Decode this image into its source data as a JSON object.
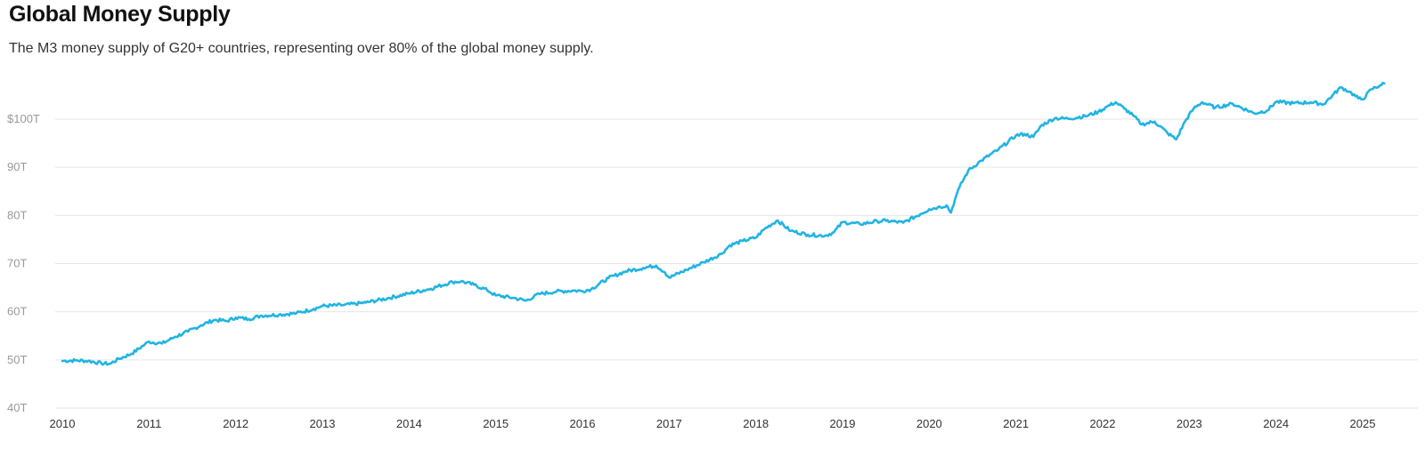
{
  "header": {
    "title": "Global Money Supply",
    "subtitle": "The M3 money supply of G20+ countries, representing over 80% of the global money supply."
  },
  "chart_data": {
    "type": "line",
    "title": "Global Money Supply",
    "subtitle": "The M3 money supply of G20+ countries, representing over 80% of the global money supply.",
    "xlabel": "",
    "ylabel": "",
    "xlim": [
      2010,
      2025.3
    ],
    "ylim": [
      40,
      110
    ],
    "y_ticks": [
      {
        "value": 40,
        "label": "40T"
      },
      {
        "value": 50,
        "label": "50T"
      },
      {
        "value": 60,
        "label": "60T"
      },
      {
        "value": 70,
        "label": "70T"
      },
      {
        "value": 80,
        "label": "80T"
      },
      {
        "value": 90,
        "label": "90T"
      },
      {
        "value": 100,
        "label": "$100T"
      }
    ],
    "x_ticks": [
      {
        "value": 2010,
        "label": "2010"
      },
      {
        "value": 2011,
        "label": "2011"
      },
      {
        "value": 2012,
        "label": "2012"
      },
      {
        "value": 2013,
        "label": "2013"
      },
      {
        "value": 2014,
        "label": "2014"
      },
      {
        "value": 2015,
        "label": "2015"
      },
      {
        "value": 2016,
        "label": "2016"
      },
      {
        "value": 2017,
        "label": "2017"
      },
      {
        "value": 2018,
        "label": "2018"
      },
      {
        "value": 2019,
        "label": "2019"
      },
      {
        "value": 2020,
        "label": "2020"
      },
      {
        "value": 2021,
        "label": "2021"
      },
      {
        "value": 2022,
        "label": "2022"
      },
      {
        "value": 2023,
        "label": "2023"
      },
      {
        "value": 2024,
        "label": "2024"
      },
      {
        "value": 2025,
        "label": "2025"
      }
    ],
    "grid": true,
    "color": "#21b4e2",
    "series": [
      {
        "x": [
          2010.0,
          2010.15,
          2010.3,
          2010.45,
          2010.55,
          2010.65,
          2010.8,
          2010.95,
          2011.0,
          2011.15,
          2011.3,
          2011.45,
          2011.6,
          2011.75,
          2011.9,
          2012.0,
          2012.15,
          2012.3,
          2012.5,
          2012.7,
          2012.9,
          2013.0,
          2013.25,
          2013.5,
          2013.75,
          2014.0,
          2014.25,
          2014.5,
          2014.6,
          2014.75,
          2014.9,
          2015.0,
          2015.2,
          2015.35,
          2015.5,
          2015.7,
          2015.9,
          2016.0,
          2016.1,
          2016.3,
          2016.5,
          2016.7,
          2016.85,
          2016.95,
          2017.0,
          2017.2,
          2017.4,
          2017.6,
          2017.7,
          2017.85,
          2018.0,
          2018.1,
          2018.25,
          2018.4,
          2018.6,
          2018.8,
          2018.9,
          2019.0,
          2019.2,
          2019.4,
          2019.5,
          2019.7,
          2019.9,
          2020.0,
          2020.1,
          2020.2,
          2020.25,
          2020.3,
          2020.35,
          2020.45,
          2020.6,
          2020.8,
          2021.0,
          2021.1,
          2021.2,
          2021.3,
          2021.45,
          2021.6,
          2021.8,
          2021.95,
          2022.05,
          2022.15,
          2022.25,
          2022.35,
          2022.45,
          2022.6,
          2022.75,
          2022.85,
          2022.95,
          2023.05,
          2023.15,
          2023.3,
          2023.5,
          2023.75,
          2023.9,
          2024.0,
          2024.2,
          2024.4,
          2024.55,
          2024.65,
          2024.75,
          2024.85,
          2024.95,
          2025.0,
          2025.1,
          2025.2,
          2025.25
        ],
        "values": [
          49.8,
          49.9,
          49.8,
          49.3,
          49.2,
          50.2,
          51.3,
          53.2,
          53.8,
          53.4,
          54.8,
          55.9,
          57.2,
          58.3,
          58.1,
          58.8,
          58.5,
          59.2,
          59.4,
          59.7,
          60.6,
          61.2,
          61.4,
          61.9,
          62.8,
          63.8,
          64.8,
          66.2,
          66.3,
          65.6,
          64.5,
          63.4,
          62.9,
          62.3,
          63.7,
          64.2,
          64.4,
          64.3,
          64.7,
          67.0,
          68.4,
          69.1,
          69.6,
          68.2,
          67.1,
          68.7,
          70.3,
          72.0,
          73.8,
          74.7,
          75.4,
          77.2,
          79.0,
          76.8,
          76.0,
          75.8,
          76.5,
          78.6,
          78.2,
          78.8,
          78.9,
          78.5,
          80.3,
          81.3,
          81.7,
          82.1,
          80.6,
          83.5,
          85.9,
          89.3,
          91.4,
          93.7,
          96.6,
          96.9,
          96.3,
          98.8,
          100.2,
          100.1,
          100.6,
          101.5,
          102.6,
          103.5,
          102.2,
          100.8,
          98.9,
          99.5,
          97.1,
          95.8,
          99.5,
          102.2,
          103.5,
          102.4,
          103.2,
          101.2,
          101.8,
          103.6,
          103.3,
          103.5,
          103.1,
          104.9,
          106.6,
          105.7,
          104.3,
          104.1,
          106.2,
          107.0,
          107.4
        ]
      }
    ]
  }
}
